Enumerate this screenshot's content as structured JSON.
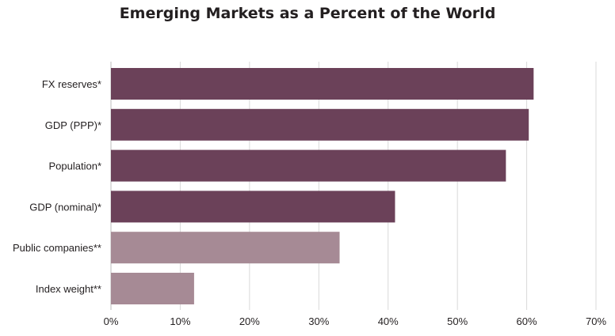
{
  "chart_data": {
    "type": "bar",
    "orientation": "horizontal",
    "title": "Emerging Markets as a Percent of the World",
    "xlabel": "",
    "ylabel": "",
    "categories": [
      "FX reserves*",
      "GDP (PPP)*",
      "Population*",
      "GDP (nominal)*",
      "Public companies**",
      "Index weight**"
    ],
    "values": [
      61,
      60.3,
      57,
      41,
      33,
      12
    ],
    "bar_colors": [
      "#6b4159",
      "#6b4159",
      "#6b4159",
      "#6b4159",
      "#a68a95",
      "#a68a95"
    ],
    "xlim": [
      0,
      70
    ],
    "x_ticks": [
      0,
      10,
      20,
      30,
      40,
      50,
      60,
      70
    ],
    "x_tick_labels": [
      "0%",
      "10%",
      "20%",
      "30%",
      "40%",
      "50%",
      "60%",
      "70%"
    ],
    "grid": "vertical",
    "legend": "none"
  }
}
